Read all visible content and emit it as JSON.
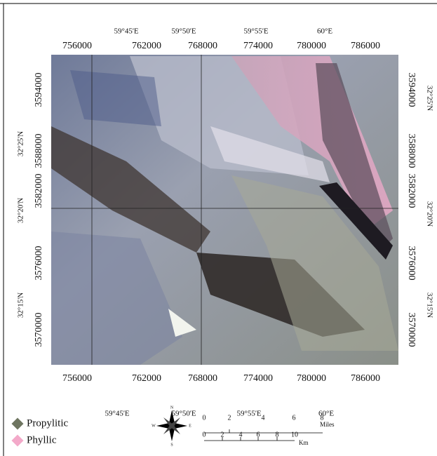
{
  "map": {
    "top_longitude_labels": [
      "59°45'E",
      "59°50'E",
      "59°55'E",
      "60°E"
    ],
    "top_easting_labels": [
      "756000",
      "762000",
      "768000",
      "774000",
      "780000",
      "786000"
    ],
    "bottom_easting_labels": [
      "756000",
      "762000",
      "768000",
      "774000",
      "780000",
      "786000"
    ],
    "bottom_longitude_labels": [
      "59°45'E",
      "59°50'E",
      "59°55'E",
      "60°E"
    ],
    "left_northing_labels": [
      "3594000",
      "3588000",
      "3582000",
      "3576000",
      "3570000"
    ],
    "left_latitude_labels": [
      "32°25'N",
      "32°20'N",
      "32°15'N"
    ],
    "right_northing_labels": [
      "3594000",
      "3588000",
      "3582000",
      "3576000",
      "3570000"
    ],
    "right_latitude_labels": [
      "32°25'N",
      "32°20'N",
      "32°15'N"
    ]
  },
  "legend": {
    "items": [
      {
        "label": "Propylitic",
        "color": "#6e7560"
      },
      {
        "label": "Phyllic",
        "color": "#f3a9c9"
      }
    ]
  },
  "scale_bar": {
    "miles_ticks": [
      "0",
      "2",
      "4",
      "6",
      "8"
    ],
    "miles_unit": "Miles",
    "km_ticks": [
      "0",
      "2",
      "4",
      "6",
      "8",
      "10"
    ],
    "km_unit": "Km"
  },
  "north_arrow": {
    "north": "N",
    "south": "S",
    "east": "E",
    "west": "W"
  }
}
